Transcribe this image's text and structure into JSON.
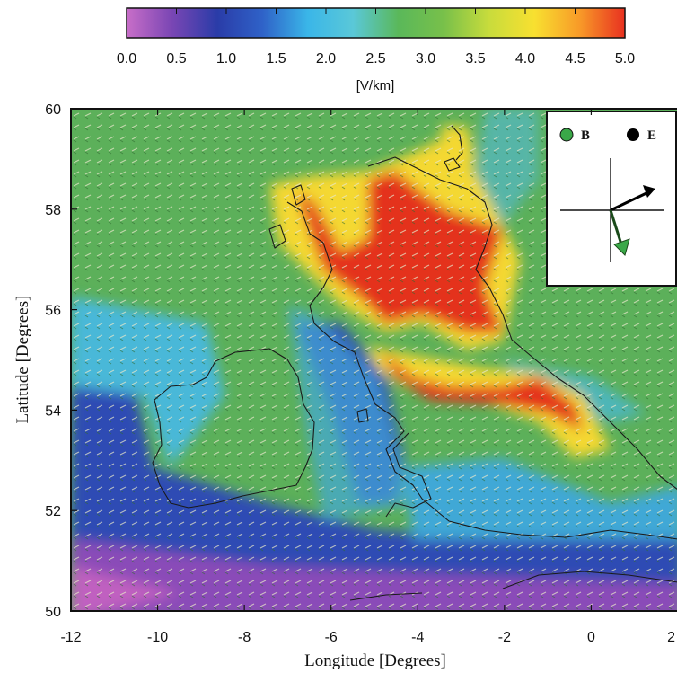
{
  "colorbar": {
    "unit": "[V/km]",
    "ticks": [
      "0.0",
      "0.5",
      "1.0",
      "1.5",
      "2.0",
      "2.5",
      "3.0",
      "3.5",
      "4.0",
      "4.5",
      "5.0"
    ],
    "range": [
      0,
      5
    ],
    "stops": [
      "#c86ec8",
      "#7a46b4",
      "#2a3ca8",
      "#2f62c8",
      "#3ab6e8",
      "#5ac8d8",
      "#5ab85a",
      "#78c04a",
      "#c8dc3c",
      "#f8e030",
      "#f89a28",
      "#e83020"
    ]
  },
  "map": {
    "xlabel": "Longitude [Degrees]",
    "ylabel": "Latitude [Degrees]",
    "xlim": [
      -12,
      2
    ],
    "ylim": [
      50,
      60
    ],
    "xticks": [
      "-12",
      "-10",
      "-8",
      "-6",
      "-4",
      "-2",
      "0",
      "2"
    ],
    "yticks": [
      "50",
      "52",
      "54",
      "56",
      "58",
      "60"
    ],
    "field": "geoelectric field magnitude",
    "legend": {
      "b_label": "B",
      "e_label": "E",
      "b_color": "#3aa848",
      "e_color": "#000000"
    }
  }
}
